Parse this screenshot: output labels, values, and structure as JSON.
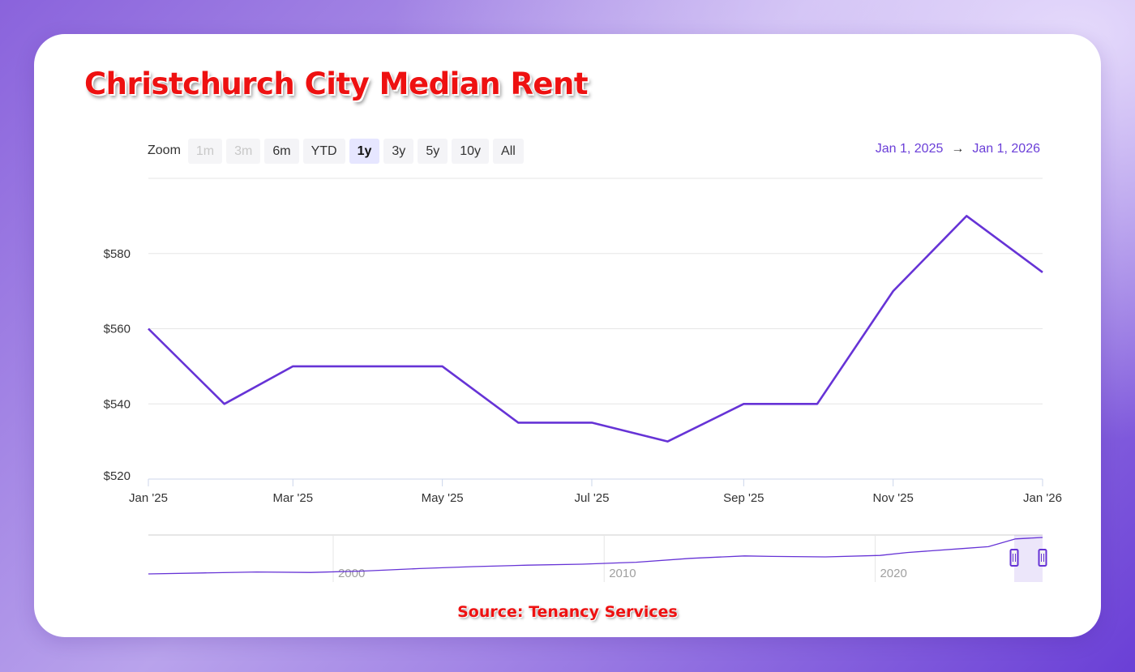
{
  "title": "Christchurch City Median Rent",
  "source": "Source: Tenancy Services",
  "zoom": {
    "label": "Zoom",
    "buttons": [
      {
        "label": "1m",
        "state": "disabled"
      },
      {
        "label": "3m",
        "state": "disabled"
      },
      {
        "label": "6m",
        "state": "normal"
      },
      {
        "label": "YTD",
        "state": "normal"
      },
      {
        "label": "1y",
        "state": "active"
      },
      {
        "label": "3y",
        "state": "normal"
      },
      {
        "label": "5y",
        "state": "normal"
      },
      {
        "label": "10y",
        "state": "normal"
      },
      {
        "label": "All",
        "state": "normal"
      }
    ]
  },
  "range": {
    "from": "Jan 1, 2025",
    "arrow": "→",
    "to": "Jan 1, 2026"
  },
  "colors": {
    "line": "#6633d6",
    "accent": "#6b3fd8",
    "title": "#ee1111",
    "navigator_fill": "rgba(102,51,214,0.12)"
  },
  "chart_data": {
    "type": "line",
    "title": "Christchurch City Median Rent",
    "xlabel": "",
    "ylabel": "",
    "x": [
      "2025-01-01",
      "2025-02-01",
      "2025-03-01",
      "2025-04-01",
      "2025-05-01",
      "2025-06-01",
      "2025-07-01",
      "2025-08-01",
      "2025-09-01",
      "2025-10-01",
      "2025-11-01",
      "2025-12-01",
      "2026-01-01"
    ],
    "values": [
      560,
      540,
      550,
      550,
      550,
      535,
      535,
      530,
      540,
      540,
      570,
      590,
      575
    ],
    "ylim": [
      520,
      600
    ],
    "y_ticks": [
      520,
      540,
      560,
      580
    ],
    "y_tick_labels": [
      "$520",
      "$540",
      "$560",
      "$580"
    ],
    "x_ticks": [
      "2025-01-01",
      "2025-03-01",
      "2025-05-01",
      "2025-07-01",
      "2025-09-01",
      "2025-11-01",
      "2026-01-01"
    ],
    "x_tick_labels": [
      "Jan '25",
      "Mar '25",
      "May '25",
      "Jul '25",
      "Sep '25",
      "Nov '25",
      "Jan '26"
    ],
    "grid": true,
    "navigator": {
      "x": [
        1993,
        1995,
        1997,
        1999,
        2001,
        2003,
        2005,
        2007,
        2009,
        2011,
        2013,
        2015,
        2016,
        2018,
        2020,
        2021,
        2023,
        2024,
        2025,
        2026
      ],
      "values": [
        200,
        210,
        220,
        215,
        230,
        255,
        275,
        290,
        300,
        320,
        360,
        385,
        380,
        375,
        390,
        420,
        460,
        480,
        560,
        575
      ],
      "x_tick_labels": [
        "2000",
        "2010",
        "2020"
      ],
      "x_ticks": [
        2000,
        2010,
        2020
      ],
      "selected": [
        "2025-01-01",
        "2026-01-01"
      ]
    }
  }
}
